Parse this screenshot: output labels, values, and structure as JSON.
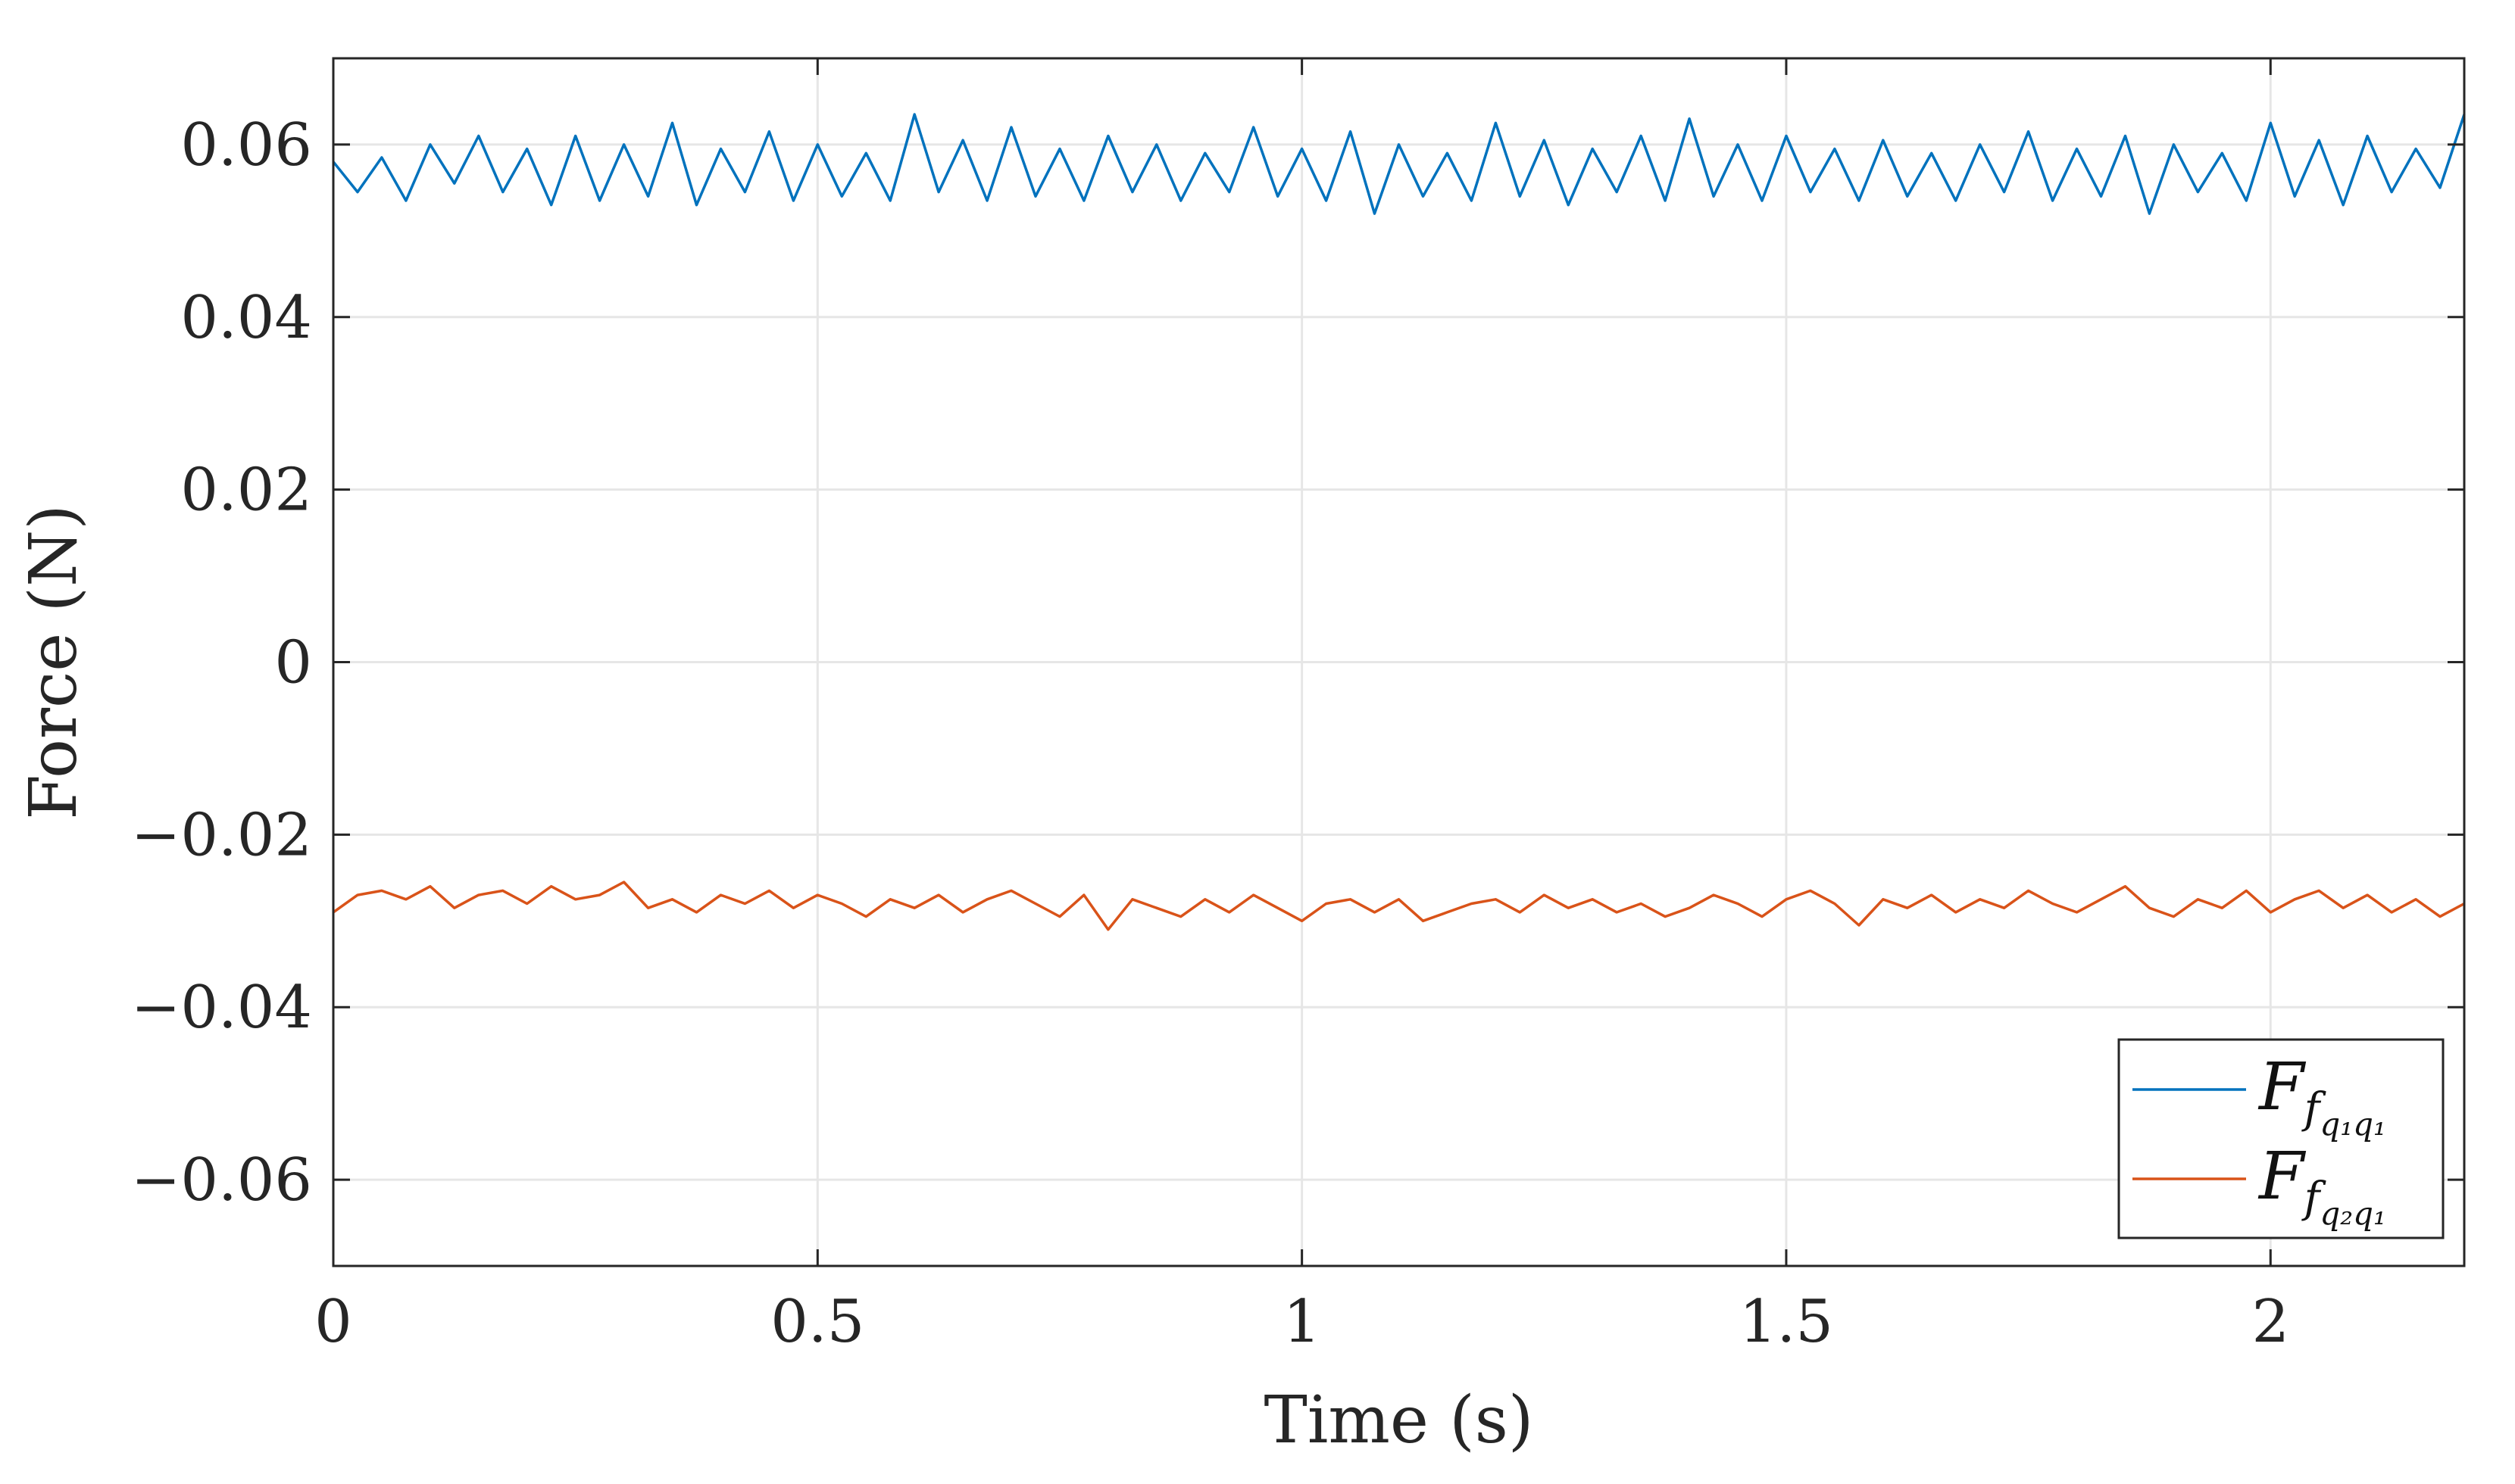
{
  "chart_data": {
    "type": "line",
    "xlabel": "Time (s)",
    "ylabel": "Force (N)",
    "xlim": [
      0,
      2.2
    ],
    "ylim": [
      -0.07,
      0.07
    ],
    "xticks": [
      0,
      0.5,
      1,
      1.5,
      2
    ],
    "xtick_labels": [
      "0",
      "0.5",
      "1",
      "1.5",
      "2"
    ],
    "yticks": [
      0.06,
      0.04,
      0.02,
      0,
      -0.02,
      -0.04,
      -0.06
    ],
    "ytick_labels": [
      "0.06",
      "0.04",
      "0.02",
      "0",
      "−0.02",
      "−0.04",
      "−0.06"
    ],
    "grid": true,
    "legend_position": "bottom-right",
    "series": [
      {
        "name": "F_{f_{q1 q1}}",
        "name_main": "F",
        "name_sub": "f",
        "name_subsub": "q₁q₁",
        "color": "#0072BD",
        "x": [
          0.0,
          0.025,
          0.05,
          0.075,
          0.1,
          0.125,
          0.15,
          0.175,
          0.2,
          0.225,
          0.25,
          0.275,
          0.3,
          0.325,
          0.35,
          0.375,
          0.4,
          0.425,
          0.45,
          0.475,
          0.5,
          0.525,
          0.55,
          0.575,
          0.6,
          0.625,
          0.65,
          0.675,
          0.7,
          0.725,
          0.75,
          0.775,
          0.8,
          0.825,
          0.85,
          0.875,
          0.9,
          0.925,
          0.95,
          0.975,
          1.0,
          1.025,
          1.05,
          1.075,
          1.1,
          1.125,
          1.15,
          1.175,
          1.2,
          1.225,
          1.25,
          1.275,
          1.3,
          1.325,
          1.35,
          1.375,
          1.4,
          1.425,
          1.45,
          1.475,
          1.5,
          1.525,
          1.55,
          1.575,
          1.6,
          1.625,
          1.65,
          1.675,
          1.7,
          1.725,
          1.75,
          1.775,
          1.8,
          1.825,
          1.85,
          1.875,
          1.9,
          1.925,
          1.95,
          1.975,
          2.0,
          2.025,
          2.05,
          2.075,
          2.1,
          2.125,
          2.15,
          2.175,
          2.2
        ],
        "y": [
          0.058,
          0.0545,
          0.0585,
          0.0535,
          0.06,
          0.0555,
          0.061,
          0.0545,
          0.0595,
          0.053,
          0.061,
          0.0535,
          0.06,
          0.054,
          0.0625,
          0.053,
          0.0595,
          0.0545,
          0.0615,
          0.0535,
          0.06,
          0.054,
          0.059,
          0.0535,
          0.0635,
          0.0545,
          0.0605,
          0.0535,
          0.062,
          0.054,
          0.0595,
          0.0535,
          0.061,
          0.0545,
          0.06,
          0.0535,
          0.059,
          0.0545,
          0.062,
          0.054,
          0.0595,
          0.0535,
          0.0615,
          0.052,
          0.06,
          0.054,
          0.059,
          0.0535,
          0.0625,
          0.054,
          0.0605,
          0.053,
          0.0595,
          0.0545,
          0.061,
          0.0535,
          0.063,
          0.054,
          0.06,
          0.0535,
          0.061,
          0.0545,
          0.0595,
          0.0535,
          0.0605,
          0.054,
          0.059,
          0.0535,
          0.06,
          0.0545,
          0.0615,
          0.0535,
          0.0595,
          0.054,
          0.061,
          0.052,
          0.06,
          0.0545,
          0.059,
          0.0535,
          0.0625,
          0.054,
          0.0605,
          0.053,
          0.061,
          0.0545,
          0.0595,
          0.055,
          0.0635
        ]
      },
      {
        "name": "F_{f_{q2 q1}}",
        "name_main": "F",
        "name_sub": "f",
        "name_subsub": "q₂q₁",
        "color": "#D95319",
        "x": [
          0.0,
          0.025,
          0.05,
          0.075,
          0.1,
          0.125,
          0.15,
          0.175,
          0.2,
          0.225,
          0.25,
          0.275,
          0.3,
          0.325,
          0.35,
          0.375,
          0.4,
          0.425,
          0.45,
          0.475,
          0.5,
          0.525,
          0.55,
          0.575,
          0.6,
          0.625,
          0.65,
          0.675,
          0.7,
          0.725,
          0.75,
          0.775,
          0.8,
          0.825,
          0.85,
          0.875,
          0.9,
          0.925,
          0.95,
          0.975,
          1.0,
          1.025,
          1.05,
          1.075,
          1.1,
          1.125,
          1.15,
          1.175,
          1.2,
          1.225,
          1.25,
          1.275,
          1.3,
          1.325,
          1.35,
          1.375,
          1.4,
          1.425,
          1.45,
          1.475,
          1.5,
          1.525,
          1.55,
          1.575,
          1.6,
          1.625,
          1.65,
          1.675,
          1.7,
          1.725,
          1.75,
          1.775,
          1.8,
          1.825,
          1.85,
          1.875,
          1.9,
          1.925,
          1.95,
          1.975,
          2.0,
          2.025,
          2.05,
          2.075,
          2.1,
          2.125,
          2.15,
          2.175,
          2.2
        ],
        "y": [
          -0.029,
          -0.027,
          -0.0265,
          -0.0275,
          -0.026,
          -0.0285,
          -0.027,
          -0.0265,
          -0.028,
          -0.026,
          -0.0275,
          -0.027,
          -0.0255,
          -0.0285,
          -0.0275,
          -0.029,
          -0.027,
          -0.028,
          -0.0265,
          -0.0285,
          -0.027,
          -0.028,
          -0.0295,
          -0.0275,
          -0.0285,
          -0.027,
          -0.029,
          -0.0275,
          -0.0265,
          -0.028,
          -0.0295,
          -0.027,
          -0.031,
          -0.0275,
          -0.0285,
          -0.0295,
          -0.0275,
          -0.029,
          -0.027,
          -0.0285,
          -0.03,
          -0.028,
          -0.0275,
          -0.029,
          -0.0275,
          -0.03,
          -0.029,
          -0.028,
          -0.0275,
          -0.029,
          -0.027,
          -0.0285,
          -0.0275,
          -0.029,
          -0.028,
          -0.0295,
          -0.0285,
          -0.027,
          -0.028,
          -0.0295,
          -0.0275,
          -0.0265,
          -0.028,
          -0.0305,
          -0.0275,
          -0.0285,
          -0.027,
          -0.029,
          -0.0275,
          -0.0285,
          -0.0265,
          -0.028,
          -0.029,
          -0.0275,
          -0.026,
          -0.0285,
          -0.0295,
          -0.0275,
          -0.0285,
          -0.0265,
          -0.029,
          -0.0275,
          -0.0265,
          -0.0285,
          -0.027,
          -0.029,
          -0.0275,
          -0.0295,
          -0.028
        ]
      }
    ]
  }
}
